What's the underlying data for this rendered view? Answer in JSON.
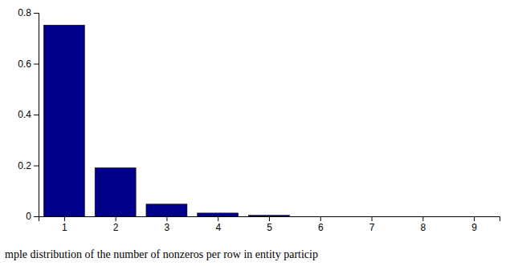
{
  "chart_data": {
    "type": "bar",
    "x": [
      1,
      2,
      3,
      4,
      5,
      6,
      7,
      8,
      9
    ],
    "values": [
      0.752,
      0.191,
      0.048,
      0.013,
      0.004,
      0.0,
      0.0,
      0.0,
      0.0
    ],
    "color": "#00008B",
    "xlim": [
      0.5,
      9.5
    ],
    "xticks": [
      1,
      2,
      3,
      4,
      5,
      6,
      7,
      8,
      9
    ],
    "ylim": [
      0,
      0.8
    ],
    "yticks": [
      0.0,
      0.2,
      0.4,
      0.6,
      0.8
    ],
    "grid": false,
    "caption": "mple distribution of the number of nonzeros per row in entity particip"
  }
}
